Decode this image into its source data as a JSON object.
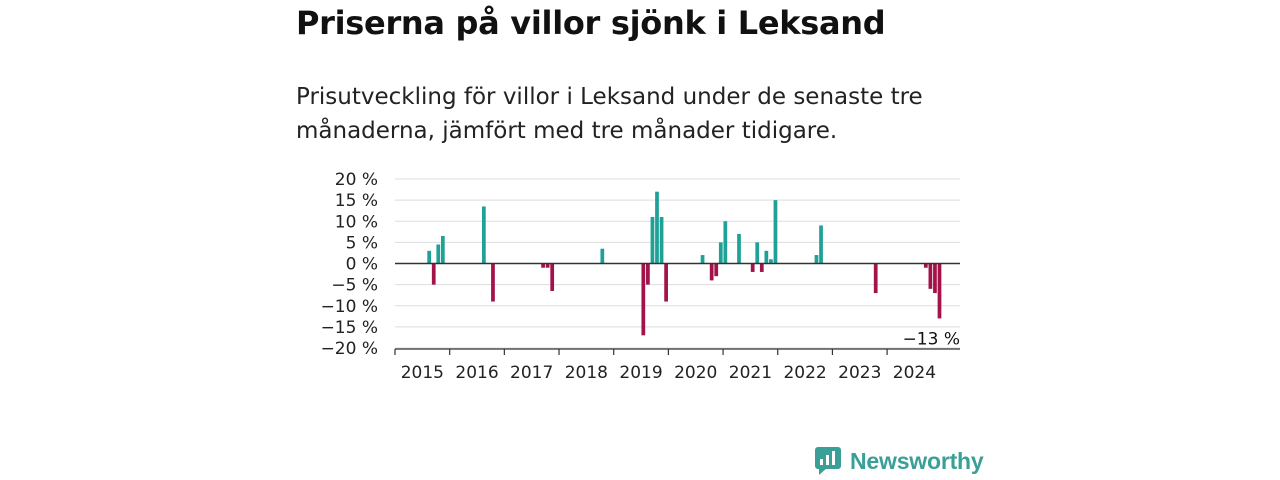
{
  "header": {
    "title": "Priserna på villor sjönk i Leksand",
    "subtitle": "Prisutveckling för villor i Leksand under de senaste tre månaderna, jämfört med tre månader tidigare."
  },
  "brand": {
    "name": "Newsworthy",
    "icon": "newsworthy-logo-icon",
    "color": "#3a9f97"
  },
  "chart_data": {
    "type": "bar",
    "x_unit": "month",
    "xlim": [
      "2015-01",
      "2025-05"
    ],
    "ylim": [
      -20,
      20
    ],
    "y_ticks": [
      20,
      15,
      10,
      5,
      0,
      -5,
      -10,
      -15,
      -20
    ],
    "y_tick_labels": [
      "20 %",
      "15 %",
      "10 %",
      "5 %",
      "0 %",
      "−5 %",
      "−10 %",
      "−15 %",
      "−20 %"
    ],
    "x_ticks": [
      "2015",
      "2016",
      "2017",
      "2018",
      "2019",
      "2020",
      "2021",
      "2022",
      "2023",
      "2024"
    ],
    "grid": true,
    "colors": {
      "positive": "#1fa197",
      "negative": "#a3134a",
      "grid": "#dddddd",
      "axis": "#333333"
    },
    "points": [
      {
        "x": "2015-08",
        "y": 3
      },
      {
        "x": "2015-09",
        "y": -5
      },
      {
        "x": "2015-10",
        "y": 4.5
      },
      {
        "x": "2015-11",
        "y": 6.5
      },
      {
        "x": "2016-08",
        "y": 13.5
      },
      {
        "x": "2016-10",
        "y": -9
      },
      {
        "x": "2017-09",
        "y": -1
      },
      {
        "x": "2017-10",
        "y": -1
      },
      {
        "x": "2017-11",
        "y": -6.5
      },
      {
        "x": "2018-10",
        "y": 3.5
      },
      {
        "x": "2019-07",
        "y": -17
      },
      {
        "x": "2019-08",
        "y": -5
      },
      {
        "x": "2019-09",
        "y": 11
      },
      {
        "x": "2019-10",
        "y": 17
      },
      {
        "x": "2019-11",
        "y": 11
      },
      {
        "x": "2019-12",
        "y": -9
      },
      {
        "x": "2020-08",
        "y": 2
      },
      {
        "x": "2020-10",
        "y": -4
      },
      {
        "x": "2020-11",
        "y": -3
      },
      {
        "x": "2020-12",
        "y": 5
      },
      {
        "x": "2021-01",
        "y": 10
      },
      {
        "x": "2021-04",
        "y": 7
      },
      {
        "x": "2021-07",
        "y": -2
      },
      {
        "x": "2021-08",
        "y": 5
      },
      {
        "x": "2021-09",
        "y": -2
      },
      {
        "x": "2021-10",
        "y": 3
      },
      {
        "x": "2021-11",
        "y": 1
      },
      {
        "x": "2021-12",
        "y": 15
      },
      {
        "x": "2022-09",
        "y": 2
      },
      {
        "x": "2022-10",
        "y": 9
      },
      {
        "x": "2023-10",
        "y": -7
      },
      {
        "x": "2024-09",
        "y": -1
      },
      {
        "x": "2024-10",
        "y": -6
      },
      {
        "x": "2024-11",
        "y": -7
      },
      {
        "x": "2024-12",
        "y": -13
      }
    ],
    "annotation": {
      "x": "2024-12",
      "y": -13,
      "text": "−13 %"
    }
  }
}
